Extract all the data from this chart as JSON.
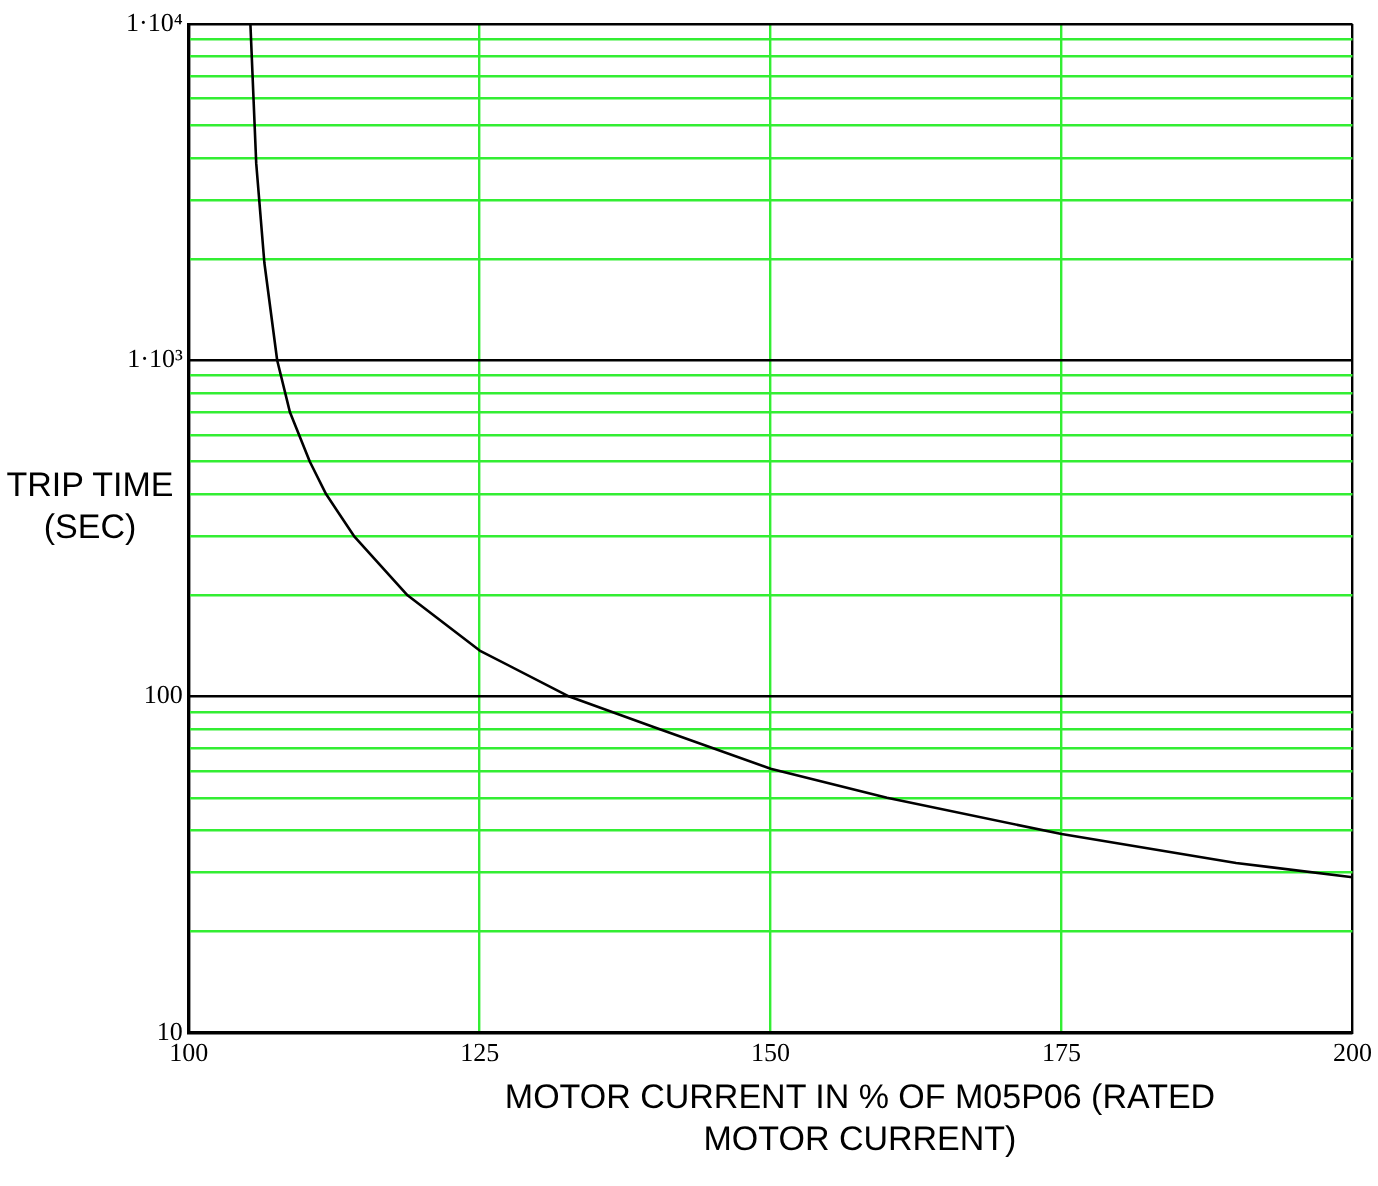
{
  "chart_data": {
    "type": "line",
    "xlabel": "MOTOR CURRENT IN % OF M05P06 (RATED MOTOR CURRENT)",
    "ylabel": "TRIP TIME (SEC)",
    "x": [
      105.3,
      105.8,
      106.5,
      107.6,
      108.7,
      110.4,
      111.8,
      114.2,
      118.8,
      125,
      132.7,
      140,
      150,
      160,
      175,
      190,
      200
    ],
    "series": [
      {
        "color": "#000000",
        "values": [
          10000,
          3850,
          1950,
          1000,
          700,
          500,
          400,
          300,
          200,
          137,
          100,
          81,
          61,
          50,
          39,
          32,
          29
        ]
      }
    ],
    "log": "y",
    "grid": true,
    "xlim": [
      100,
      200
    ],
    "xticks": [
      100,
      125,
      150,
      175,
      200
    ],
    "ylim": [
      10,
      10000
    ],
    "yticks": [
      {
        "value": 10,
        "label": "10"
      },
      {
        "value": 20,
        "label": null
      },
      {
        "value": 30,
        "label": null
      },
      {
        "value": 40,
        "label": null
      },
      {
        "value": 50,
        "label": null
      },
      {
        "value": 60,
        "label": null
      },
      {
        "value": 70,
        "label": null
      },
      {
        "value": 80,
        "label": null
      },
      {
        "value": 90,
        "label": null
      },
      {
        "value": 100,
        "label": "100"
      },
      {
        "value": 200,
        "label": null
      },
      {
        "value": 300,
        "label": null
      },
      {
        "value": 400,
        "label": null
      },
      {
        "value": 500,
        "label": null
      },
      {
        "value": 600,
        "label": null
      },
      {
        "value": 700,
        "label": null
      },
      {
        "value": 800,
        "label": null
      },
      {
        "value": 900,
        "label": null
      },
      {
        "value": 1000,
        "label": "1·10³"
      },
      {
        "value": 2000,
        "label": null
      },
      {
        "value": 3000,
        "label": null
      },
      {
        "value": 4000,
        "label": null
      },
      {
        "value": 5000,
        "label": null
      },
      {
        "value": 6000,
        "label": null
      },
      {
        "value": 7000,
        "label": null
      },
      {
        "value": 8000,
        "label": null
      },
      {
        "value": 9000,
        "label": null
      },
      {
        "value": 10000,
        "label": "1·10⁴"
      }
    ]
  }
}
